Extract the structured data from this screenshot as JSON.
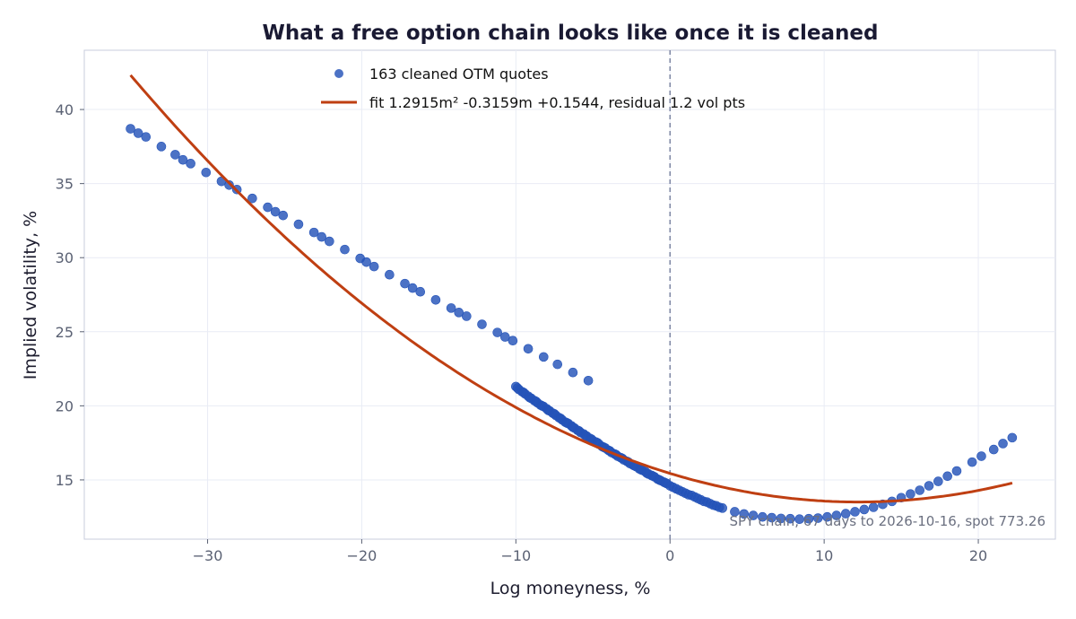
{
  "chart_data": {
    "type": "scatter",
    "title": "What a free option chain looks like once it is cleaned",
    "xlabel": "Log moneyness, %",
    "ylabel": "Implied volatility, %",
    "xlim": [
      -38,
      25
    ],
    "ylim": [
      11,
      44
    ],
    "x_ticks": [
      -30,
      -20,
      -10,
      0,
      10,
      20
    ],
    "x_tick_labels": [
      "−30",
      "−20",
      "−10",
      "0",
      "10",
      "20"
    ],
    "y_ticks": [
      15,
      20,
      25,
      30,
      35,
      40
    ],
    "y_tick_labels": [
      "15",
      "20",
      "25",
      "30",
      "35",
      "40"
    ],
    "grid": true,
    "legend_position": "top-center",
    "scatter_series": {
      "name": "163 cleaned OTM quotes",
      "color": "#2453b8",
      "points": [
        [
          -35.0,
          38.7
        ],
        [
          -34.0,
          38.15
        ],
        [
          -33.0,
          37.5
        ],
        [
          -32.1,
          36.95
        ],
        [
          -31.1,
          36.35
        ],
        [
          -30.1,
          35.75
        ],
        [
          -29.1,
          35.15
        ],
        [
          -28.1,
          34.6
        ],
        [
          -27.1,
          34.0
        ],
        [
          -26.1,
          33.4
        ],
        [
          -25.1,
          32.85
        ],
        [
          -24.1,
          32.25
        ],
        [
          -23.1,
          31.7
        ],
        [
          -22.1,
          31.1
        ],
        [
          -21.1,
          30.55
        ],
        [
          -20.1,
          29.95
        ],
        [
          -19.2,
          29.4
        ],
        [
          -18.2,
          28.85
        ],
        [
          -17.2,
          28.25
        ],
        [
          -16.2,
          27.7
        ],
        [
          -15.2,
          27.15
        ],
        [
          -14.2,
          26.6
        ],
        [
          -13.2,
          26.05
        ],
        [
          -12.2,
          25.5
        ],
        [
          -11.2,
          24.95
        ],
        [
          -10.2,
          24.4
        ],
        [
          -9.2,
          23.85
        ],
        [
          -8.2,
          23.3
        ],
        [
          -7.3,
          22.8
        ],
        [
          -6.3,
          22.25
        ],
        [
          -5.3,
          21.7
        ],
        [
          -10.0,
          21.3
        ],
        [
          -9.8,
          21.1
        ],
        [
          -9.6,
          20.95
        ],
        [
          -9.4,
          20.8
        ],
        [
          -9.2,
          20.65
        ],
        [
          -9.0,
          20.5
        ],
        [
          -8.8,
          20.35
        ],
        [
          -8.6,
          20.2
        ],
        [
          -8.4,
          20.05
        ],
        [
          -8.2,
          19.95
        ],
        [
          -8.0,
          19.8
        ],
        [
          -7.8,
          19.65
        ],
        [
          -7.6,
          19.5
        ],
        [
          -7.4,
          19.35
        ],
        [
          -7.2,
          19.2
        ],
        [
          -7.0,
          19.05
        ],
        [
          -6.8,
          18.9
        ],
        [
          -6.6,
          18.8
        ],
        [
          -6.4,
          18.65
        ],
        [
          -6.2,
          18.5
        ],
        [
          -6.0,
          18.35
        ],
        [
          -5.8,
          18.2
        ],
        [
          -5.6,
          18.1
        ],
        [
          -5.4,
          17.95
        ],
        [
          -5.2,
          17.8
        ],
        [
          -5.0,
          17.65
        ],
        [
          -4.8,
          17.55
        ],
        [
          -4.6,
          17.4
        ],
        [
          -4.4,
          17.25
        ],
        [
          -4.2,
          17.15
        ],
        [
          -4.0,
          17.0
        ],
        [
          -3.8,
          16.85
        ],
        [
          -3.6,
          16.75
        ],
        [
          -3.4,
          16.6
        ],
        [
          -3.2,
          16.5
        ],
        [
          -3.0,
          16.35
        ],
        [
          -2.8,
          16.25
        ],
        [
          -2.6,
          16.1
        ],
        [
          -2.4,
          16.0
        ],
        [
          -2.2,
          15.9
        ],
        [
          -2.0,
          15.75
        ],
        [
          -1.8,
          15.65
        ],
        [
          -1.6,
          15.55
        ],
        [
          -1.4,
          15.4
        ],
        [
          -1.2,
          15.3
        ],
        [
          -1.0,
          15.2
        ],
        [
          -0.8,
          15.05
        ],
        [
          -0.6,
          14.95
        ],
        [
          -0.4,
          14.85
        ],
        [
          -0.2,
          14.75
        ],
        [
          0.0,
          14.6
        ],
        [
          0.2,
          14.5
        ],
        [
          0.4,
          14.4
        ],
        [
          0.6,
          14.3
        ],
        [
          0.8,
          14.2
        ],
        [
          1.0,
          14.1
        ],
        [
          1.2,
          14.0
        ],
        [
          1.4,
          13.95
        ],
        [
          1.6,
          13.85
        ],
        [
          1.8,
          13.75
        ],
        [
          2.0,
          13.65
        ],
        [
          2.2,
          13.55
        ],
        [
          2.4,
          13.5
        ],
        [
          2.6,
          13.4
        ],
        [
          2.8,
          13.3
        ],
        [
          3.0,
          13.25
        ],
        [
          3.2,
          13.15
        ],
        [
          3.4,
          13.1
        ],
        [
          4.2,
          12.85
        ],
        [
          4.8,
          12.7
        ],
        [
          5.4,
          12.6
        ],
        [
          6.0,
          12.5
        ],
        [
          6.6,
          12.45
        ],
        [
          7.2,
          12.4
        ],
        [
          7.8,
          12.38
        ],
        [
          8.4,
          12.35
        ],
        [
          9.0,
          12.38
        ],
        [
          9.6,
          12.42
        ],
        [
          10.2,
          12.5
        ],
        [
          10.8,
          12.6
        ],
        [
          11.4,
          12.72
        ],
        [
          12.0,
          12.85
        ],
        [
          12.6,
          13.0
        ],
        [
          13.2,
          13.15
        ],
        [
          13.8,
          13.35
        ],
        [
          14.4,
          13.55
        ],
        [
          15.0,
          13.8
        ],
        [
          15.6,
          14.05
        ],
        [
          16.2,
          14.3
        ],
        [
          16.8,
          14.6
        ],
        [
          17.4,
          14.9
        ],
        [
          18.0,
          15.25
        ],
        [
          18.6,
          15.6
        ],
        [
          19.6,
          16.2
        ],
        [
          20.2,
          16.6
        ],
        [
          21.0,
          17.05
        ],
        [
          21.6,
          17.45
        ],
        [
          22.2,
          17.85
        ],
        [
          -34.5,
          38.4
        ],
        [
          -31.6,
          36.6
        ],
        [
          -28.6,
          34.9
        ],
        [
          -25.6,
          33.1
        ],
        [
          -22.6,
          31.4
        ],
        [
          -19.7,
          29.7
        ],
        [
          -16.7,
          27.95
        ],
        [
          -13.7,
          26.3
        ],
        [
          -10.7,
          24.65
        ],
        [
          -9.9,
          21.2
        ],
        [
          -9.5,
          20.9
        ],
        [
          -9.1,
          20.55
        ],
        [
          -8.7,
          20.3
        ],
        [
          -8.3,
          20.0
        ],
        [
          -7.9,
          19.7
        ],
        [
          -7.5,
          19.45
        ],
        [
          -7.1,
          19.15
        ],
        [
          -6.7,
          18.85
        ],
        [
          -6.3,
          18.55
        ],
        [
          -5.9,
          18.3
        ],
        [
          -5.5,
          18.0
        ],
        [
          -5.1,
          17.75
        ],
        [
          -4.7,
          17.5
        ],
        [
          -4.3,
          17.2
        ],
        [
          -3.9,
          16.95
        ],
        [
          -3.5,
          16.7
        ],
        [
          -3.1,
          16.45
        ],
        [
          -2.7,
          16.2
        ],
        [
          -2.3,
          15.95
        ],
        [
          -1.9,
          15.7
        ],
        [
          -1.5,
          15.45
        ],
        [
          -1.1,
          15.25
        ],
        [
          -0.7,
          15.0
        ],
        [
          -0.3,
          14.8
        ]
      ]
    },
    "fit_series": {
      "name": "fit  1.2915m² -0.3159m +0.1544,  residual 1.2 vol pts",
      "color": "#bf3f12",
      "coefficients": {
        "a": 1.2915,
        "b": -0.3159,
        "c": 0.1544
      },
      "x_range": [
        -35,
        22.2
      ]
    },
    "vline": {
      "x": 0,
      "color": "#7d86a3"
    },
    "annotation": "SPY chain, 67 days to 2026-10-16, spot 773.26"
  }
}
